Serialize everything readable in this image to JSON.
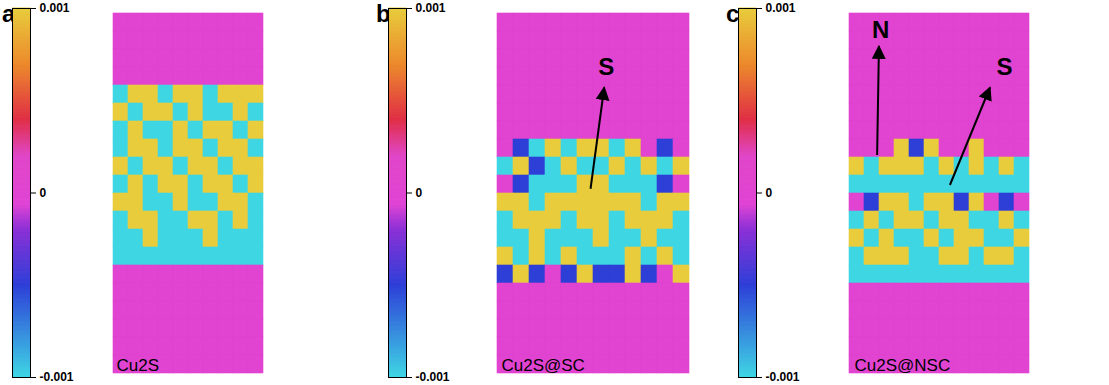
{
  "chart_data": [
    {
      "type": "heatmap",
      "panel": "a",
      "label": "Cu2S",
      "annotations": [],
      "colorbar": {
        "range": [
          -0.001,
          0.001
        ],
        "ticks": [
          0.001,
          0,
          -0.001
        ]
      },
      "cells": [
        [
          0,
          0,
          0,
          0,
          0,
          0,
          0,
          0,
          0,
          0
        ],
        [
          0,
          0,
          0,
          0,
          0,
          0,
          0,
          0,
          0,
          0
        ],
        [
          0,
          0,
          0,
          0,
          0,
          0,
          0,
          0,
          0,
          0
        ],
        [
          0,
          0,
          0,
          0,
          0,
          0,
          0,
          0,
          0,
          0
        ],
        [
          -0.001,
          0.001,
          0.001,
          -0.001,
          0.001,
          0.001,
          -0.001,
          0.001,
          0.001,
          0.001
        ],
        [
          0.001,
          -0.001,
          0.001,
          0.001,
          -0.001,
          0.001,
          -0.001,
          -0.001,
          0.001,
          -0.001
        ],
        [
          -0.001,
          0.001,
          -0.001,
          -0.001,
          0.001,
          -0.001,
          0.001,
          0.001,
          -0.001,
          0.001
        ],
        [
          -0.001,
          0.001,
          0.001,
          -0.001,
          0.001,
          0.001,
          -0.001,
          0.001,
          0.001,
          -0.001
        ],
        [
          0.001,
          -0.001,
          0.001,
          0.001,
          -0.001,
          0.001,
          0.001,
          -0.001,
          0.001,
          0.001
        ],
        [
          -0.001,
          0.001,
          -0.001,
          0.001,
          0.001,
          -0.001,
          0.001,
          0.001,
          -0.001,
          0.001
        ],
        [
          0.001,
          0.001,
          -0.001,
          -0.001,
          0.001,
          -0.001,
          -0.001,
          0.001,
          0.001,
          -0.001
        ],
        [
          -0.001,
          0.001,
          0.001,
          -0.001,
          -0.001,
          0.001,
          0.001,
          -0.001,
          0.001,
          -0.001
        ],
        [
          -0.001,
          -0.001,
          0.001,
          -0.001,
          -0.001,
          -0.001,
          0.001,
          -0.001,
          -0.001,
          -0.001
        ],
        [
          -0.001,
          -0.001,
          -0.001,
          -0.001,
          -0.001,
          -0.001,
          -0.001,
          -0.001,
          -0.001,
          -0.001
        ],
        [
          0,
          0,
          0,
          0,
          0,
          0,
          0,
          0,
          0,
          0
        ],
        [
          0,
          0,
          0,
          0,
          0,
          0,
          0,
          0,
          0,
          0
        ],
        [
          0,
          0,
          0,
          0,
          0,
          0,
          0,
          0,
          0,
          0
        ],
        [
          0,
          0,
          0,
          0,
          0,
          0,
          0,
          0,
          0,
          0
        ],
        [
          0,
          0,
          0,
          0,
          0,
          0,
          0,
          0,
          0,
          0
        ],
        [
          0,
          0,
          0,
          0,
          0,
          0,
          0,
          0,
          0,
          0
        ]
      ]
    },
    {
      "type": "heatmap",
      "panel": "b",
      "label": "Cu2S@SC",
      "annotations": [
        {
          "text": "S"
        }
      ],
      "colorbar": {
        "range": [
          -0.001,
          0.001
        ],
        "ticks": [
          0.001,
          0,
          -0.001
        ]
      },
      "cells": [
        [
          0,
          0,
          0,
          0,
          0,
          0,
          0,
          0,
          0,
          0,
          0,
          0
        ],
        [
          0,
          0,
          0,
          0,
          0,
          0,
          0,
          0,
          0,
          0,
          0,
          0
        ],
        [
          0,
          0,
          0,
          0,
          0,
          0,
          0,
          0,
          0,
          0,
          0,
          0
        ],
        [
          0,
          0,
          0,
          0,
          0,
          0,
          0,
          0,
          0,
          0,
          0,
          0
        ],
        [
          0,
          0,
          0,
          0,
          0,
          0,
          0,
          0,
          0,
          0,
          0,
          0
        ],
        [
          0,
          0,
          0,
          0,
          0,
          0,
          0,
          0,
          0,
          0,
          0,
          0
        ],
        [
          0,
          0,
          0,
          0,
          0,
          0,
          0,
          0,
          0,
          0,
          0,
          0
        ],
        [
          0,
          -0.0005,
          -0.001,
          0.001,
          -0.001,
          0.001,
          0.001,
          -0.001,
          0.001,
          0,
          -0.0005,
          0
        ],
        [
          -0.001,
          0.001,
          -0.0005,
          -0.001,
          0.001,
          -0.001,
          -0.001,
          0.001,
          -0.001,
          0.001,
          -0.001,
          0.001
        ],
        [
          0,
          -0.0005,
          -0.001,
          -0.001,
          -0.001,
          0.001,
          0.001,
          -0.001,
          -0.001,
          -0.001,
          -0.0005,
          0
        ],
        [
          0.001,
          0.001,
          -0.001,
          0.001,
          0.001,
          0.001,
          0.001,
          0.001,
          0.001,
          -0.001,
          0.001,
          0.001
        ],
        [
          -0.001,
          0.001,
          0.001,
          0.001,
          -0.001,
          0.001,
          0.001,
          -0.001,
          0.001,
          0.001,
          0.001,
          -0.001
        ],
        [
          -0.001,
          -0.001,
          0.001,
          -0.001,
          -0.001,
          -0.001,
          0.001,
          -0.001,
          -0.001,
          0.001,
          -0.001,
          -0.001
        ],
        [
          0.001,
          -0.001,
          0.001,
          -0.001,
          0.001,
          -0.001,
          -0.001,
          -0.001,
          0.001,
          -0.001,
          0.001,
          -0.001
        ],
        [
          -0.0005,
          0.001,
          -0.0005,
          0,
          -0.0005,
          0.001,
          -0.0005,
          -0.0005,
          0.001,
          -0.0005,
          0,
          0.001
        ],
        [
          0,
          0,
          0,
          0,
          0,
          0,
          0,
          0,
          0,
          0,
          0,
          0
        ],
        [
          0,
          0,
          0,
          0,
          0,
          0,
          0,
          0,
          0,
          0,
          0,
          0
        ],
        [
          0,
          0,
          0,
          0,
          0,
          0,
          0,
          0,
          0,
          0,
          0,
          0
        ],
        [
          0,
          0,
          0,
          0,
          0,
          0,
          0,
          0,
          0,
          0,
          0,
          0
        ],
        [
          0,
          0,
          0,
          0,
          0,
          0,
          0,
          0,
          0,
          0,
          0,
          0
        ]
      ]
    },
    {
      "type": "heatmap",
      "panel": "c",
      "label": "Cu2S@NSC",
      "annotations": [
        {
          "text": "N"
        },
        {
          "text": "S"
        }
      ],
      "colorbar": {
        "range": [
          -0.001,
          0.001
        ],
        "ticks": [
          0.001,
          0,
          -0.001
        ]
      },
      "cells": [
        [
          0,
          0,
          0,
          0,
          0,
          0,
          0,
          0,
          0,
          0,
          0,
          0
        ],
        [
          0,
          0,
          0,
          0,
          0,
          0,
          0,
          0,
          0,
          0,
          0,
          0
        ],
        [
          0,
          0,
          0,
          0,
          0,
          0,
          0,
          0,
          0,
          0,
          0,
          0
        ],
        [
          0,
          0,
          0,
          0,
          0,
          0,
          0,
          0,
          0,
          0,
          0,
          0
        ],
        [
          0,
          0,
          0,
          0,
          0,
          0,
          0,
          0,
          0,
          0,
          0,
          0
        ],
        [
          0,
          0,
          0,
          0,
          0,
          0,
          0,
          0,
          0,
          0,
          0,
          0
        ],
        [
          0,
          0,
          0,
          0,
          0,
          0,
          0,
          0,
          0,
          0,
          0,
          0
        ],
        [
          0,
          0,
          0,
          0.001,
          -0.0005,
          0.001,
          0,
          0,
          0.001,
          0,
          0,
          0
        ],
        [
          0.001,
          -0.001,
          0.001,
          0.001,
          0.001,
          -0.001,
          0.001,
          -0.001,
          0.001,
          -0.001,
          0.001,
          -0.001
        ],
        [
          -0.001,
          -0.001,
          -0.001,
          -0.001,
          -0.001,
          -0.001,
          -0.001,
          -0.001,
          -0.001,
          -0.001,
          -0.001,
          -0.001
        ],
        [
          0,
          -0.0005,
          0.001,
          0.001,
          -0.001,
          0.001,
          0.001,
          -0.0005,
          0.001,
          0,
          -0.0005,
          0
        ],
        [
          -0.001,
          0.001,
          -0.001,
          0.001,
          0.001,
          -0.001,
          0.001,
          0.001,
          -0.001,
          -0.001,
          0.001,
          -0.001
        ],
        [
          0.001,
          -0.001,
          0.001,
          -0.001,
          -0.001,
          0.001,
          -0.001,
          0.001,
          0.001,
          -0.001,
          -0.001,
          0.001
        ],
        [
          -0.001,
          0.001,
          0.001,
          0.001,
          -0.001,
          -0.001,
          0.001,
          0.001,
          -0.001,
          0.001,
          0.001,
          -0.001
        ],
        [
          -0.001,
          -0.001,
          -0.001,
          -0.001,
          -0.001,
          -0.001,
          -0.001,
          -0.001,
          -0.001,
          -0.001,
          -0.001,
          -0.001
        ],
        [
          0,
          0,
          0,
          0,
          0,
          0,
          0,
          0,
          0,
          0,
          0,
          0
        ],
        [
          0,
          0,
          0,
          0,
          0,
          0,
          0,
          0,
          0,
          0,
          0,
          0
        ],
        [
          0,
          0,
          0,
          0,
          0,
          0,
          0,
          0,
          0,
          0,
          0,
          0
        ],
        [
          0,
          0,
          0,
          0,
          0,
          0,
          0,
          0,
          0,
          0,
          0,
          0
        ],
        [
          0,
          0,
          0,
          0,
          0,
          0,
          0,
          0,
          0,
          0,
          0,
          0
        ]
      ]
    }
  ]
}
